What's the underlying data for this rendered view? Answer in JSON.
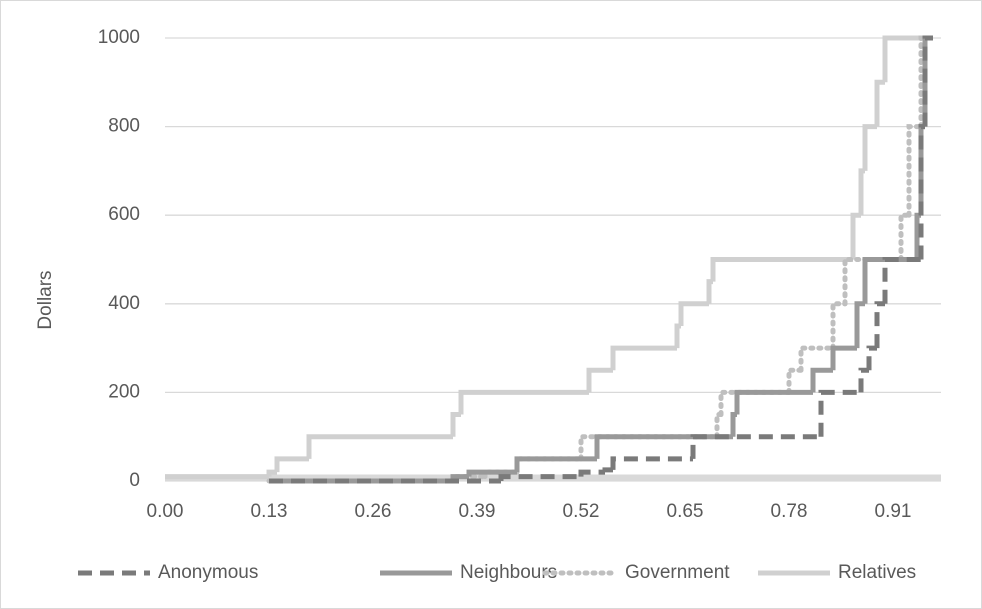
{
  "chart_data": {
    "type": "step-line",
    "y_label": "Dollars",
    "xlim": [
      0,
      0.97
    ],
    "ylim": [
      0,
      1000
    ],
    "xticks": [
      {
        "value": 0,
        "label": "0.00"
      },
      0.13,
      0.26,
      0.39,
      0.52,
      0.65,
      0.78,
      0.91
    ],
    "yticks": [
      0,
      200,
      400,
      600,
      800,
      1000
    ],
    "grid": true,
    "legend": "bottom",
    "series": [
      {
        "name": "Anonymous",
        "color": "#7a7a7a",
        "dash": "dashed",
        "x": [
          0.13,
          0.42,
          0.52,
          0.55,
          0.56,
          0.66,
          0.82,
          0.87,
          0.88,
          0.89,
          0.9,
          0.945,
          0.95,
          0.96
        ],
        "values": [
          0,
          10,
          20,
          25,
          50,
          100,
          200,
          250,
          300,
          400,
          500,
          800,
          1000,
          1000
        ]
      },
      {
        "name": "Neighbours",
        "color": "#999999",
        "dash": "solid",
        "x": [
          0.13,
          0.36,
          0.38,
          0.44,
          0.54,
          0.71,
          0.715,
          0.81,
          0.835,
          0.865,
          0.875,
          0.94,
          0.945,
          0.95,
          0.96
        ],
        "values": [
          0,
          10,
          20,
          50,
          100,
          150,
          200,
          250,
          300,
          400,
          500,
          600,
          800,
          1000,
          1000
        ]
      },
      {
        "name": "Government",
        "color": "#bfbfbf",
        "dash": "dotted",
        "x": [
          0.13,
          0.36,
          0.4,
          0.44,
          0.52,
          0.69,
          0.695,
          0.78,
          0.795,
          0.835,
          0.85,
          0.92,
          0.93,
          0.945,
          0.96
        ],
        "values": [
          0,
          10,
          20,
          50,
          100,
          150,
          200,
          250,
          300,
          400,
          500,
          600,
          800,
          1000,
          1000
        ]
      },
      {
        "name": "Relatives",
        "color": "#d0d0d0",
        "dash": "solid",
        "x": [
          0,
          0.13,
          0.14,
          0.18,
          0.36,
          0.37,
          0.53,
          0.56,
          0.64,
          0.645,
          0.68,
          0.685,
          0.86,
          0.87,
          0.875,
          0.89,
          0.9,
          0.96
        ],
        "values": [
          10,
          20,
          50,
          100,
          150,
          200,
          250,
          300,
          350,
          400,
          450,
          500,
          600,
          700,
          800,
          900,
          1000,
          1000
        ]
      }
    ]
  }
}
